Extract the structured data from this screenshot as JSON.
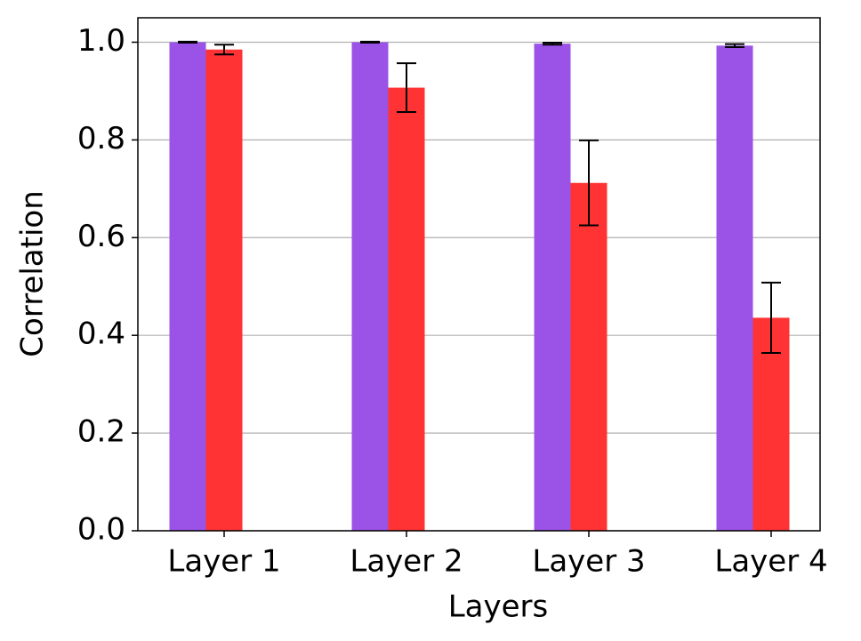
{
  "chart_data": {
    "type": "bar",
    "xlabel": "Layers",
    "ylabel": "Correlation",
    "categories": [
      "Layer 1",
      "Layer 2",
      "Layer 3",
      "Layer 4"
    ],
    "series": [
      {
        "color": "#9b52e6",
        "values": [
          1.0,
          1.0,
          0.997,
          0.993
        ],
        "errors": [
          0.001,
          0.001,
          0.002,
          0.003
        ]
      },
      {
        "color": "#ff3333",
        "values": [
          0.985,
          0.907,
          0.712,
          0.436
        ],
        "errors": [
          0.01,
          0.05,
          0.087,
          0.072
        ]
      }
    ],
    "ylim": [
      0,
      1.05
    ],
    "yticks": [
      {
        "value": 0,
        "label": "0.0"
      },
      {
        "value": 0.2,
        "label": "0.2"
      },
      {
        "value": 0.4,
        "label": "0.4"
      },
      {
        "value": 0.6,
        "label": "0.6"
      },
      {
        "value": 0.8,
        "label": "0.8"
      },
      {
        "value": 1,
        "label": "1.0"
      }
    ],
    "grid": true
  }
}
